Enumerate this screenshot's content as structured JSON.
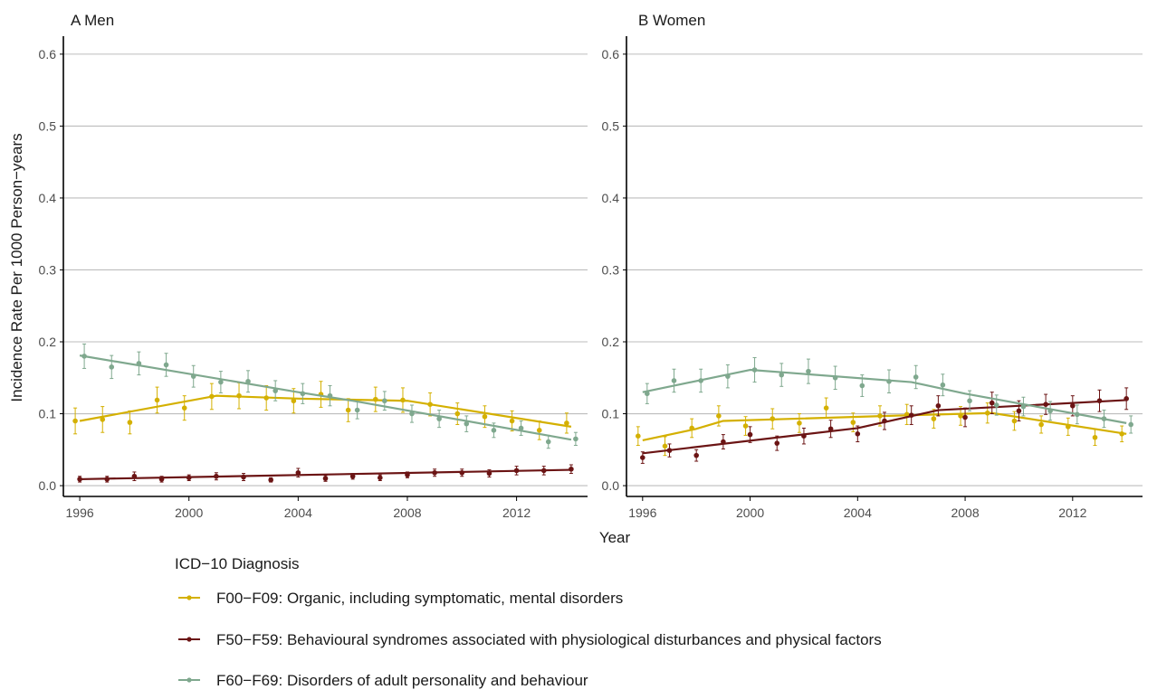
{
  "ylabel": "Incidence Rate Per 1000 Person−years",
  "xlabel": "Year",
  "legend": {
    "title": "ICD−10 Diagnosis",
    "items": [
      "F00−F09: Organic, including symptomatic, mental disorders",
      "F50−F59: Behavioural syndromes associated with physiological disturbances and physical factors",
      "F60−F69: Disorders of adult personality and behaviour"
    ]
  },
  "colors": {
    "F00-F09": "#d4b000",
    "F50-F59": "#6b1414",
    "F60-F69": "#7fa88e",
    "grid": "#bdbdbd",
    "axis": "#000000"
  },
  "chart_data": [
    {
      "type": "line",
      "title": "A Men",
      "x": [
        1996,
        1997,
        1998,
        1999,
        2000,
        2001,
        2002,
        2003,
        2004,
        2005,
        2006,
        2007,
        2008,
        2009,
        2010,
        2011,
        2012,
        2013,
        2014
      ],
      "xticks": [
        1996,
        2000,
        2004,
        2008,
        2012
      ],
      "yticks": [
        0.0,
        0.1,
        0.2,
        0.3,
        0.4,
        0.5,
        0.6
      ],
      "ylim": [
        -0.015,
        0.625
      ],
      "xlim": [
        1995.4,
        2014.6
      ],
      "series": [
        {
          "name": "F00−F09: Organic, including symptomatic, mental disorders",
          "key": "F00-F09",
          "observed": [
            0.09,
            0.092,
            0.088,
            0.119,
            0.108,
            0.124,
            0.125,
            0.122,
            0.118,
            0.127,
            0.105,
            0.12,
            0.119,
            0.113,
            0.1,
            0.096,
            0.09,
            0.077,
            0.087
          ],
          "ci": [
            0.018,
            0.018,
            0.016,
            0.018,
            0.017,
            0.018,
            0.018,
            0.017,
            0.017,
            0.018,
            0.016,
            0.017,
            0.017,
            0.016,
            0.015,
            0.015,
            0.014,
            0.013,
            0.014
          ],
          "trend": [
            [
              1996,
              0.09
            ],
            [
              2001,
              0.125
            ],
            [
              2004,
              0.121
            ],
            [
              2008,
              0.118
            ],
            [
              2014,
              0.082
            ]
          ]
        },
        {
          "name": "F50−F59: Behavioural syndromes associated with physiological disturbances and physical factors",
          "key": "F50-F59",
          "observed": [
            0.009,
            0.009,
            0.013,
            0.009,
            0.011,
            0.013,
            0.012,
            0.008,
            0.018,
            0.01,
            0.013,
            0.011,
            0.015,
            0.018,
            0.018,
            0.017,
            0.021,
            0.021,
            0.023
          ],
          "ci": [
            0.004,
            0.004,
            0.006,
            0.004,
            0.004,
            0.005,
            0.005,
            0.003,
            0.006,
            0.004,
            0.004,
            0.004,
            0.004,
            0.005,
            0.005,
            0.005,
            0.006,
            0.006,
            0.006
          ],
          "trend": [
            [
              1996,
              0.009
            ],
            [
              2014,
              0.022
            ]
          ]
        },
        {
          "name": "F60−F69: Disorders of adult personality and behaviour",
          "key": "F60-F69",
          "observed": [
            0.18,
            0.165,
            0.17,
            0.168,
            0.152,
            0.144,
            0.145,
            0.132,
            0.128,
            0.125,
            0.105,
            0.118,
            0.1,
            0.093,
            0.086,
            0.077,
            0.08,
            0.061,
            0.065
          ],
          "ci": [
            0.017,
            0.016,
            0.016,
            0.016,
            0.015,
            0.015,
            0.015,
            0.014,
            0.014,
            0.014,
            0.012,
            0.013,
            0.012,
            0.012,
            0.011,
            0.01,
            0.01,
            0.009,
            0.009
          ],
          "trend": [
            [
              1996,
              0.181
            ],
            [
              2004,
              0.13
            ],
            [
              2006,
              0.118
            ],
            [
              2014,
              0.064
            ]
          ]
        }
      ]
    },
    {
      "type": "line",
      "title": "B Women",
      "x": [
        1996,
        1997,
        1998,
        1999,
        2000,
        2001,
        2002,
        2003,
        2004,
        2005,
        2006,
        2007,
        2008,
        2009,
        2010,
        2011,
        2012,
        2013,
        2014
      ],
      "xticks": [
        1996,
        2000,
        2004,
        2008,
        2012
      ],
      "yticks": [
        0.0,
        0.1,
        0.2,
        0.3,
        0.4,
        0.5,
        0.6
      ],
      "ylim": [
        -0.015,
        0.625
      ],
      "xlim": [
        1995.4,
        2014.6
      ],
      "series": [
        {
          "name": "F00−F09: Organic, including symptomatic, mental disorders",
          "key": "F00-F09",
          "observed": [
            0.069,
            0.055,
            0.08,
            0.097,
            0.083,
            0.093,
            0.087,
            0.108,
            0.088,
            0.097,
            0.099,
            0.093,
            0.097,
            0.101,
            0.09,
            0.085,
            0.082,
            0.067,
            0.072
          ],
          "ci": [
            0.013,
            0.013,
            0.013,
            0.014,
            0.013,
            0.014,
            0.013,
            0.014,
            0.013,
            0.014,
            0.014,
            0.013,
            0.013,
            0.014,
            0.013,
            0.012,
            0.012,
            0.011,
            0.011
          ],
          "trend": [
            [
              1996,
              0.063
            ],
            [
              1998,
              0.079
            ],
            [
              1999,
              0.09
            ],
            [
              2006,
              0.098
            ],
            [
              2009,
              0.101
            ],
            [
              2014,
              0.072
            ]
          ]
        },
        {
          "name": "F50−F59: Behavioural syndromes associated with physiological disturbances and physical factors",
          "key": "F50-F59",
          "observed": [
            0.039,
            0.049,
            0.042,
            0.061,
            0.071,
            0.059,
            0.069,
            0.079,
            0.072,
            0.09,
            0.098,
            0.111,
            0.095,
            0.115,
            0.104,
            0.113,
            0.111,
            0.118,
            0.121
          ],
          "ci": [
            0.008,
            0.009,
            0.008,
            0.01,
            0.011,
            0.01,
            0.011,
            0.012,
            0.011,
            0.012,
            0.013,
            0.014,
            0.013,
            0.015,
            0.014,
            0.014,
            0.014,
            0.015,
            0.015
          ],
          "trend": [
            [
              1996,
              0.045
            ],
            [
              2004,
              0.08
            ],
            [
              2007,
              0.105
            ],
            [
              2014,
              0.119
            ]
          ]
        },
        {
          "name": "F60−F69: Disorders of adult personality and behaviour",
          "key": "F60-F69",
          "observed": [
            0.128,
            0.146,
            0.146,
            0.152,
            0.161,
            0.154,
            0.159,
            0.15,
            0.139,
            0.145,
            0.151,
            0.14,
            0.118,
            0.112,
            0.11,
            0.104,
            0.099,
            0.093,
            0.085
          ],
          "ci": [
            0.014,
            0.016,
            0.016,
            0.016,
            0.017,
            0.016,
            0.017,
            0.016,
            0.015,
            0.016,
            0.016,
            0.015,
            0.014,
            0.014,
            0.013,
            0.013,
            0.013,
            0.012,
            0.012
          ],
          "trend": [
            [
              1996,
              0.13
            ],
            [
              2000,
              0.161
            ],
            [
              2006,
              0.144
            ],
            [
              2008,
              0.128
            ],
            [
              2014,
              0.087
            ]
          ]
        }
      ]
    }
  ]
}
